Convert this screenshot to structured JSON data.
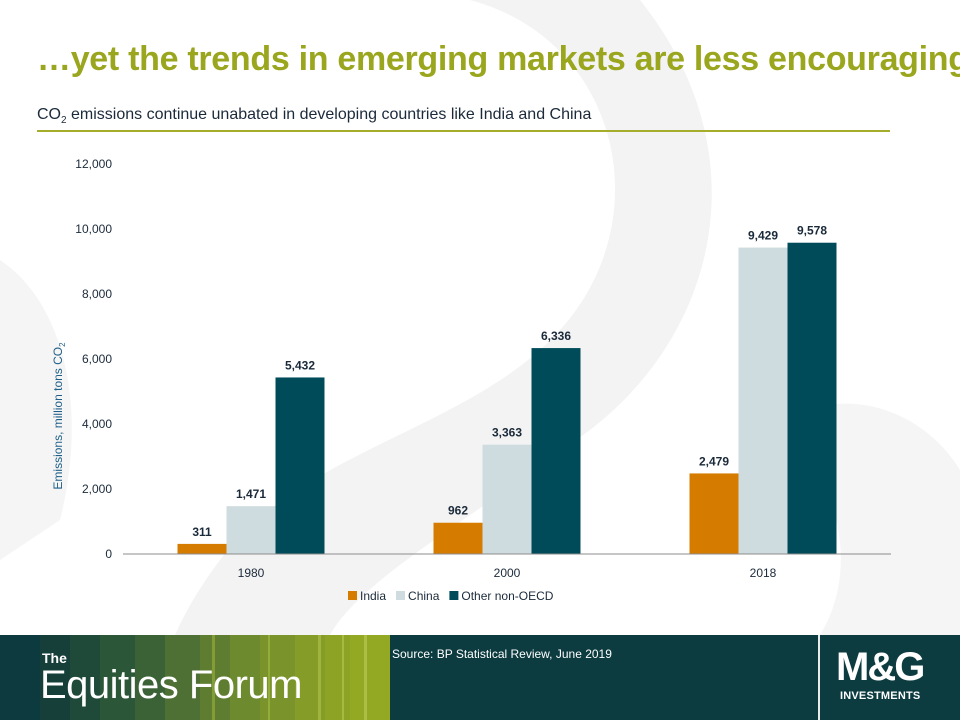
{
  "slide": {
    "title": "…yet the trends in emerging markets are less encouraging",
    "subtitle_prefix": "CO",
    "subtitle_sub": "2",
    "subtitle_suffix": " emissions continue unabated in developing countries like India and China"
  },
  "colors": {
    "accent": "#9aa61d",
    "india": "#d47b00",
    "china": "#cfdcdf",
    "other": "#004b59",
    "footer": "#0c3b40"
  },
  "chart_data": {
    "type": "bar",
    "ylabel_prefix": "Emissions, million tons CO",
    "ylabel_sub": "2",
    "xlabel": "",
    "categories": [
      "1980",
      "2000",
      "2018"
    ],
    "series": [
      {
        "name": "India",
        "values": [
          311,
          962,
          2479
        ],
        "labels": [
          "311",
          "962",
          "2,479"
        ]
      },
      {
        "name": "China",
        "values": [
          1471,
          3363,
          9429
        ],
        "labels": [
          "1,471",
          "3,363",
          "9,429"
        ]
      },
      {
        "name": "Other non-OECD",
        "values": [
          5432,
          6336,
          9578
        ],
        "labels": [
          "5,432",
          "6,336",
          "9,578"
        ]
      }
    ],
    "ylim": [
      0,
      12000
    ],
    "yticks": [
      0,
      2000,
      4000,
      6000,
      8000,
      10000,
      12000
    ],
    "ytick_labels": [
      "0",
      "2,000",
      "4,000",
      "6,000",
      "8,000",
      "10,000",
      "12,000"
    ],
    "grid": false,
    "legend_position": "bottom"
  },
  "footer": {
    "brand_small": "The",
    "brand_name": "Equities Forum",
    "source": "Source: BP Statistical Review,  June 2019",
    "logo_main": "M&G",
    "logo_sub": "INVESTMENTS"
  }
}
